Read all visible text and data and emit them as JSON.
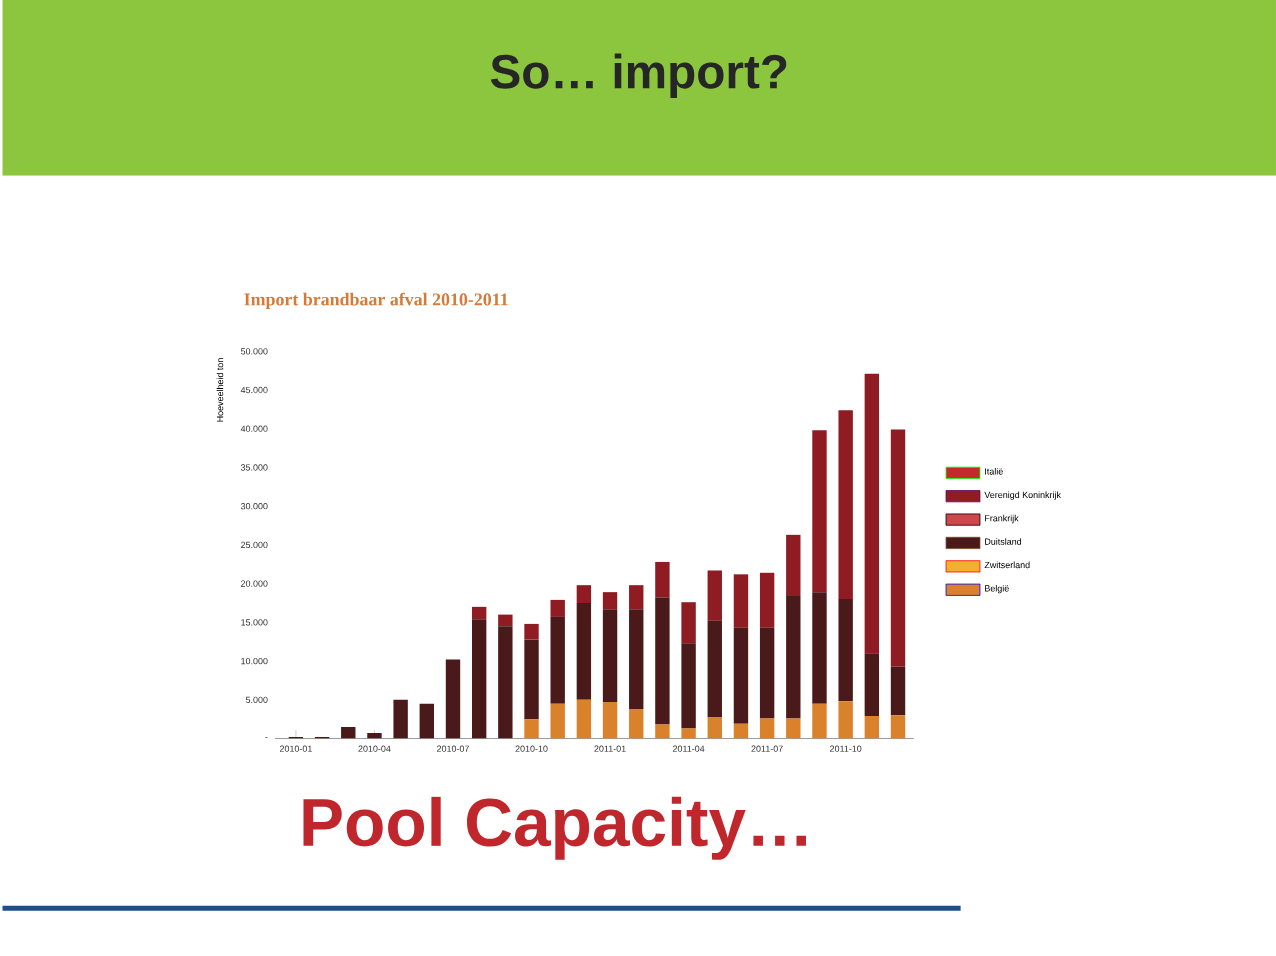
{
  "chart_data": {
    "type": "bar",
    "title": "So… import?",
    "subtitle": "Import brandbaar afval 2010-2011",
    "ylabel": "Hoeveelheid ton",
    "annotations": [
      "Pool Capacity…"
    ],
    "categories": [
      "2010-01",
      null,
      null,
      "2010-04",
      null,
      null,
      "2010-07",
      null,
      null,
      "2010-10",
      null,
      null,
      "2011-01",
      null,
      null,
      "2011-04",
      null,
      null,
      "2011-07",
      null,
      null,
      "2011-10",
      null,
      null
    ],
    "stacked": true,
    "legend": "right",
    "ylim": [
      0,
      50000
    ],
    "yticks": [
      {
        "value": 0,
        "label": "-"
      },
      {
        "value": 5000,
        "label": "5.000"
      },
      {
        "value": 10000,
        "label": "10.000"
      },
      {
        "value": 15000,
        "label": "15.000"
      },
      {
        "value": 20000,
        "label": "20.000"
      },
      {
        "value": 25000,
        "label": "25.000"
      },
      {
        "value": 30000,
        "label": "30.000"
      },
      {
        "value": 35000,
        "label": "35.000"
      },
      {
        "value": 40000,
        "label": "40.000"
      },
      {
        "value": 45000,
        "label": "45.000"
      },
      {
        "value": 50000,
        "label": "50.000"
      }
    ],
    "series": [
      {
        "name": "België",
        "color": "#d9822b",
        "values": [
          0,
          0,
          0,
          0,
          0,
          0,
          0,
          0,
          0,
          2500,
          4500,
          5000,
          4700,
          3800,
          1800,
          1300,
          2700,
          1900,
          2600,
          2600,
          4500,
          4800,
          2900,
          3000
        ]
      },
      {
        "name": "Zwitserland",
        "color": "#f0b030",
        "values": [
          0,
          0,
          0,
          0,
          0,
          0,
          0,
          0,
          0,
          0,
          0,
          0,
          0,
          0,
          0,
          0,
          0,
          0,
          0,
          0,
          0,
          0,
          0,
          0
        ]
      },
      {
        "name": "Duitsland",
        "color": "#4a1a1a",
        "values": [
          200,
          200,
          1500,
          700,
          5000,
          4500,
          10200,
          15400,
          14500,
          10300,
          11200,
          12500,
          12000,
          12900,
          16400,
          11000,
          12500,
          12400,
          11700,
          15800,
          14400,
          13200,
          8100,
          6300
        ]
      },
      {
        "name": "Frankrijk",
        "color": "#d0464a",
        "values": [
          0,
          0,
          0,
          0,
          0,
          0,
          0,
          0,
          0,
          0,
          0,
          0,
          0,
          0,
          0,
          0,
          0,
          0,
          0,
          0,
          0,
          0,
          0,
          0
        ]
      },
      {
        "name": "Verenigd Koninkrijk",
        "color": "#8e1c22",
        "values": [
          0,
          0,
          0,
          0,
          0,
          0,
          0,
          1600,
          1500,
          2000,
          2200,
          2300,
          2200,
          3100,
          4600,
          5300,
          6500,
          6900,
          7100,
          7900,
          20900,
          24400,
          36100,
          30600
        ]
      },
      {
        "name": "Italië",
        "color": "#c42a2a",
        "values": [
          0,
          0,
          0,
          0,
          0,
          0,
          0,
          0,
          0,
          0,
          0,
          0,
          0,
          0,
          0,
          0,
          0,
          0,
          0,
          0,
          0,
          0,
          0,
          0
        ]
      }
    ]
  }
}
